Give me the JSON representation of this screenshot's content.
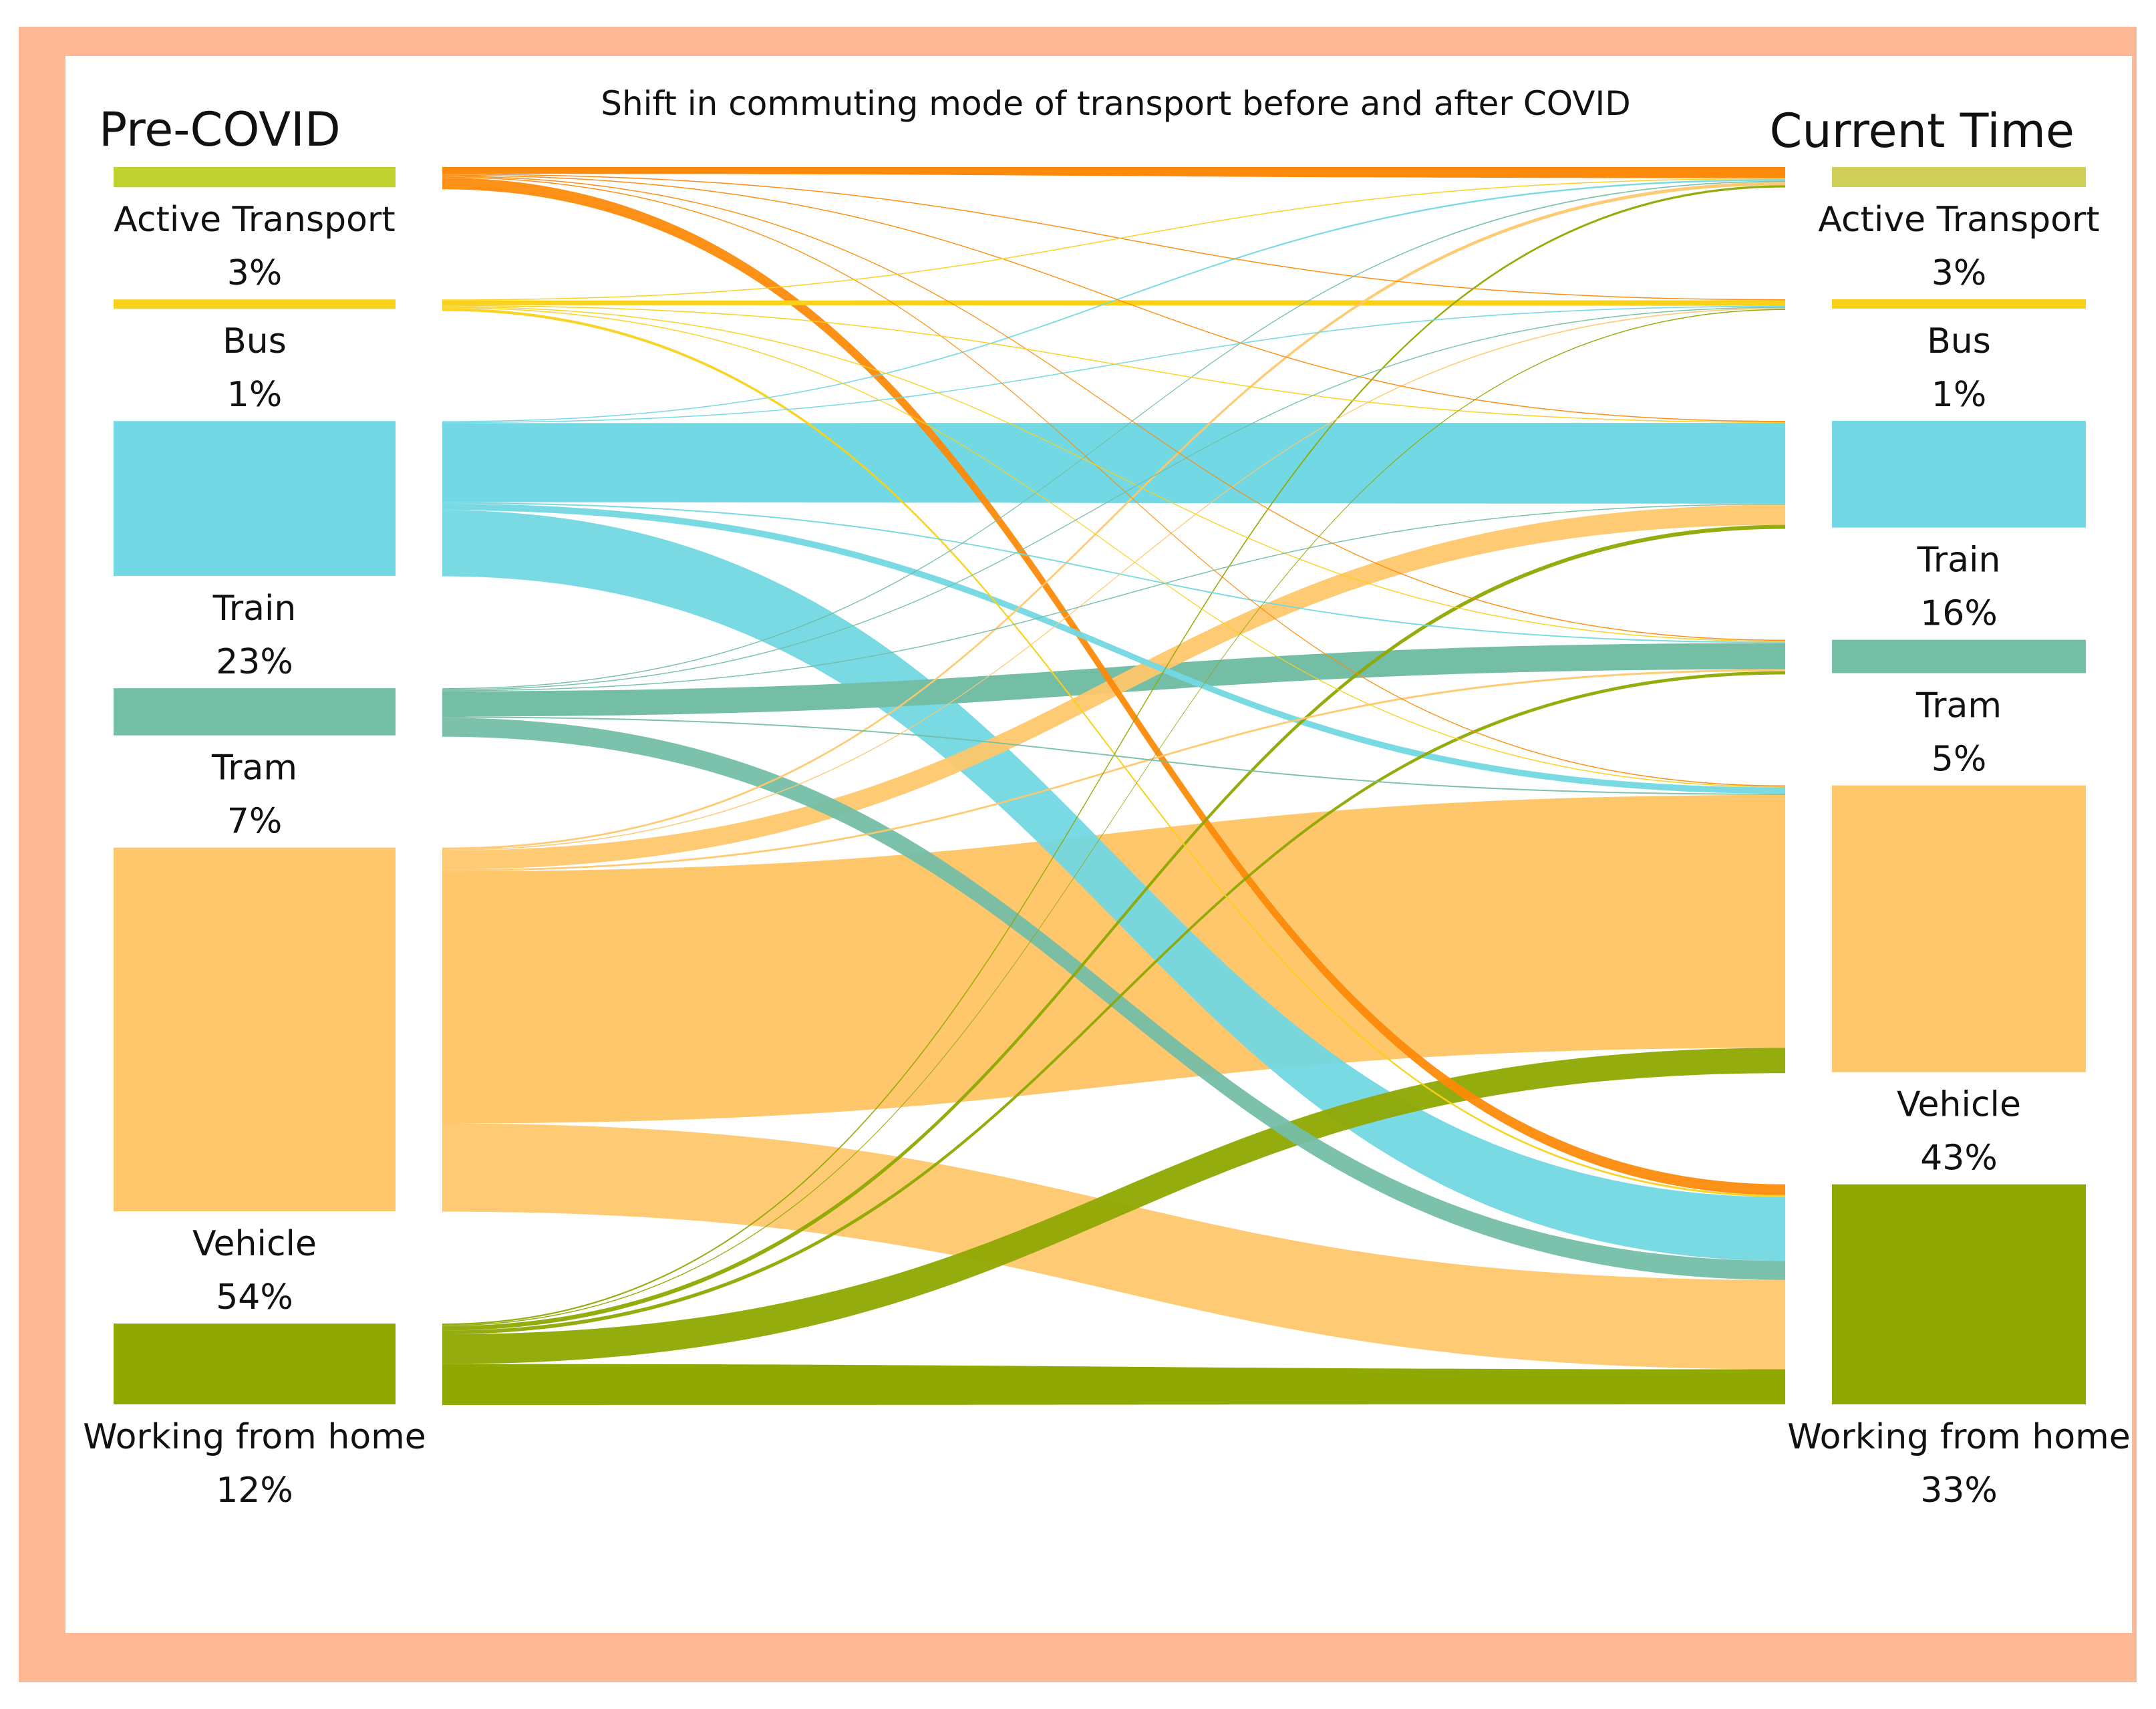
{
  "chart_data": {
    "type": "sankey",
    "title": "Shift in commuting mode of transport before and after COVID",
    "left_title": "Pre-COVID",
    "right_title": "Current Time",
    "colors": {
      "Active Transport": "#BFD22F",
      "Active Transport (current)": "#CFD05A",
      "Bus": "#F9D11A",
      "Train": "#72D8E3",
      "Tram": "#74BEA6",
      "Vehicle": "#FEC76C",
      "Working from home": "#8FA802",
      "active_flow": "#FD8A0A"
    },
    "left_nodes": [
      {
        "name": "Active Transport",
        "percent": "3%",
        "value": 3
      },
      {
        "name": "Bus",
        "percent": "1%",
        "value": 1
      },
      {
        "name": "Train",
        "percent": "23%",
        "value": 23
      },
      {
        "name": "Tram",
        "percent": "7%",
        "value": 7
      },
      {
        "name": "Vehicle",
        "percent": "54%",
        "value": 54
      },
      {
        "name": "Working from home",
        "percent": "12%",
        "value": 12
      }
    ],
    "right_nodes": [
      {
        "name": "Active Transport",
        "percent": "3%",
        "value": 3
      },
      {
        "name": "Bus",
        "percent": "1%",
        "value": 1
      },
      {
        "name": "Train",
        "percent": "16%",
        "value": 16
      },
      {
        "name": "Tram",
        "percent": "5%",
        "value": 5
      },
      {
        "name": "Vehicle",
        "percent": "43%",
        "value": 43
      },
      {
        "name": "Working from home",
        "percent": "33%",
        "value": 33
      }
    ],
    "flows": [
      {
        "from": "Active Transport",
        "to": "Active Transport",
        "value": 1.0
      },
      {
        "from": "Active Transport",
        "to": "Bus",
        "value": 0.05
      },
      {
        "from": "Active Transport",
        "to": "Train",
        "value": 0.1
      },
      {
        "from": "Active Transport",
        "to": "Tram",
        "value": 0.05
      },
      {
        "from": "Active Transport",
        "to": "Vehicle",
        "value": 0.1
      },
      {
        "from": "Active Transport",
        "to": "Working from home",
        "value": 1.7
      },
      {
        "from": "Bus",
        "to": "Active Transport",
        "value": 0.05
      },
      {
        "from": "Bus",
        "to": "Bus",
        "value": 0.5
      },
      {
        "from": "Bus",
        "to": "Train",
        "value": 0.05
      },
      {
        "from": "Bus",
        "to": "Tram",
        "value": 0.05
      },
      {
        "from": "Bus",
        "to": "Vehicle",
        "value": 0.05
      },
      {
        "from": "Bus",
        "to": "Working from home",
        "value": 0.3
      },
      {
        "from": "Train",
        "to": "Active Transport",
        "value": 0.15
      },
      {
        "from": "Train",
        "to": "Bus",
        "value": 0.1
      },
      {
        "from": "Train",
        "to": "Train",
        "value": 12.0
      },
      {
        "from": "Train",
        "to": "Tram",
        "value": 0.2
      },
      {
        "from": "Train",
        "to": "Vehicle",
        "value": 1.0
      },
      {
        "from": "Train",
        "to": "Working from home",
        "value": 10.0
      },
      {
        "from": "Tram",
        "to": "Active Transport",
        "value": 0.1
      },
      {
        "from": "Tram",
        "to": "Bus",
        "value": 0.05
      },
      {
        "from": "Tram",
        "to": "Train",
        "value": 0.1
      },
      {
        "from": "Tram",
        "to": "Tram",
        "value": 4.0
      },
      {
        "from": "Tram",
        "to": "Vehicle",
        "value": 0.2
      },
      {
        "from": "Tram",
        "to": "Working from home",
        "value": 3.0
      },
      {
        "from": "Vehicle",
        "to": "Active Transport",
        "value": 0.3
      },
      {
        "from": "Vehicle",
        "to": "Bus",
        "value": 0.1
      },
      {
        "from": "Vehicle",
        "to": "Train",
        "value": 3.0
      },
      {
        "from": "Vehicle",
        "to": "Tram",
        "value": 0.3
      },
      {
        "from": "Vehicle",
        "to": "Vehicle",
        "value": 40.0
      },
      {
        "from": "Vehicle",
        "to": "Working from home",
        "value": 14.0
      },
      {
        "from": "Working from home",
        "to": "Active Transport",
        "value": 0.2
      },
      {
        "from": "Working from home",
        "to": "Bus",
        "value": 0.05
      },
      {
        "from": "Working from home",
        "to": "Train",
        "value": 0.6
      },
      {
        "from": "Working from home",
        "to": "Tram",
        "value": 0.5
      },
      {
        "from": "Working from home",
        "to": "Vehicle",
        "value": 4.0
      },
      {
        "from": "Working from home",
        "to": "Working from home",
        "value": 5.5
      }
    ]
  }
}
